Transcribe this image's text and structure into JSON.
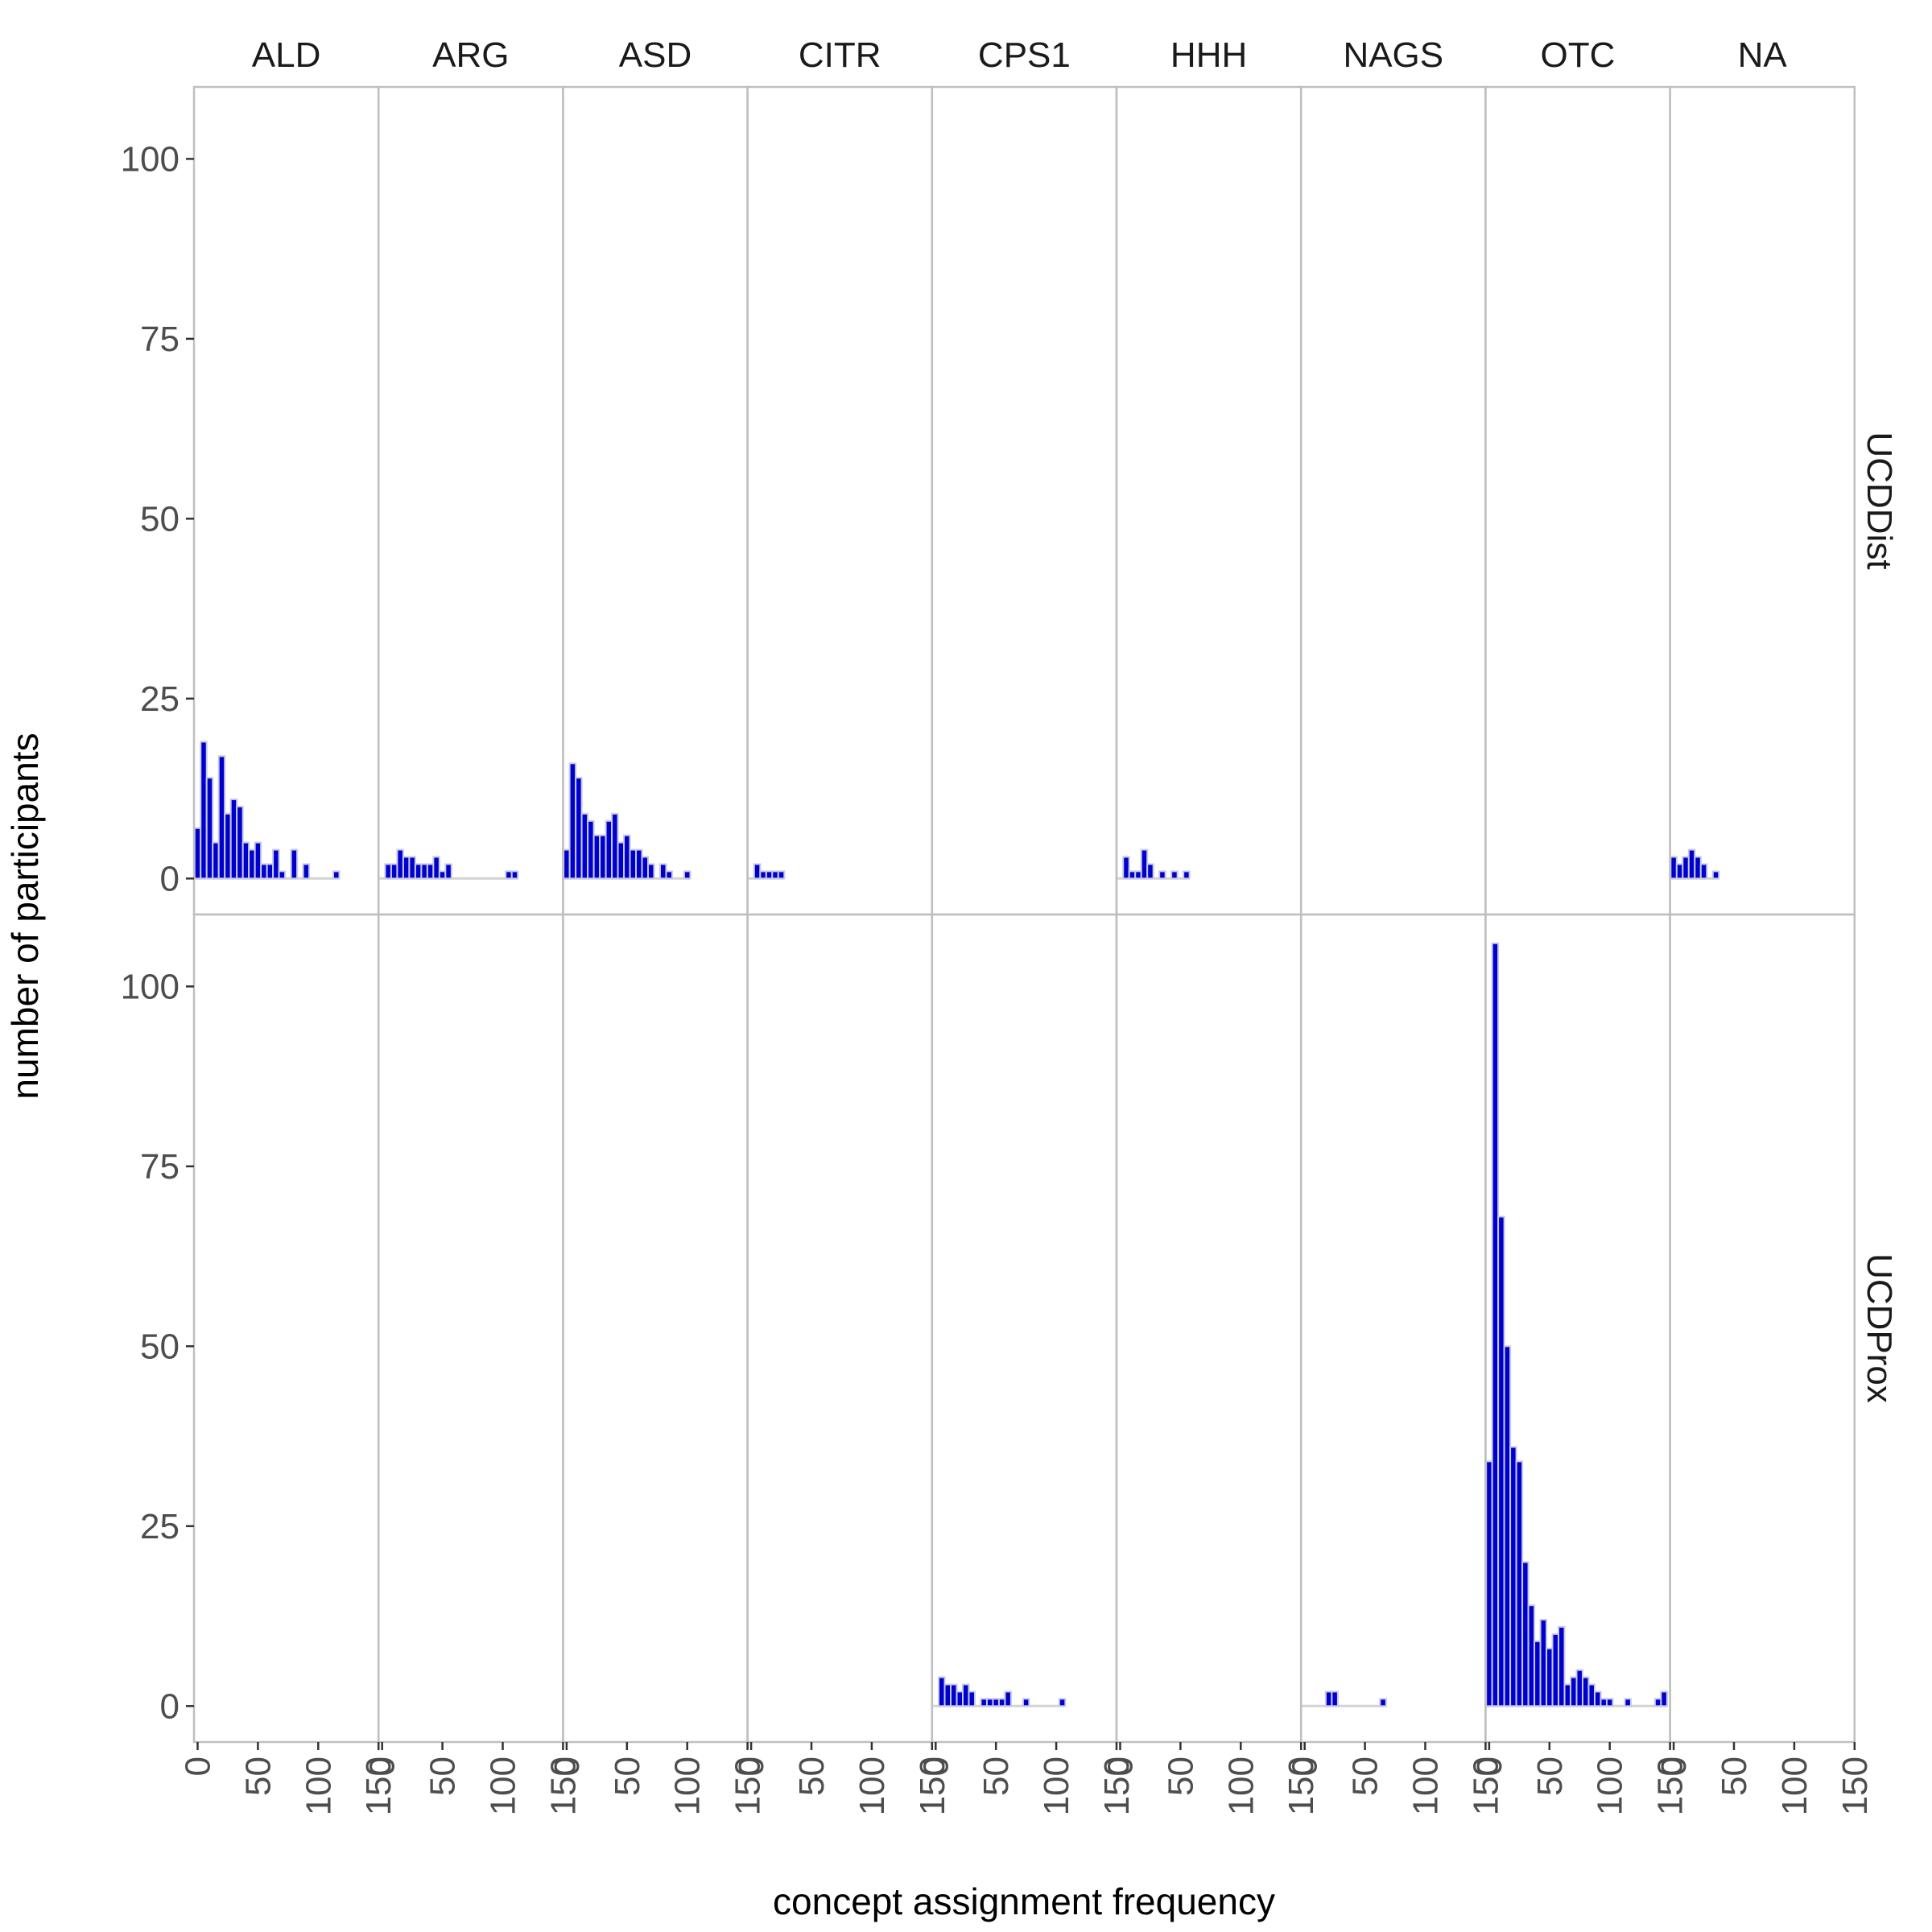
{
  "chart_data": {
    "type": "bar",
    "subtype": "faceted-histogram",
    "xlabel": "concept assignment frequency",
    "ylabel": "number of participants",
    "xlim": [
      -3,
      150
    ],
    "ylim": [
      -5,
      110
    ],
    "x_ticks": [
      0,
      50,
      100,
      150
    ],
    "y_ticks": [
      0,
      25,
      50,
      75,
      100
    ],
    "bin_width": 5,
    "grid": false,
    "legend": "none",
    "colors": {
      "bar_fill": "#0000cc",
      "bar_outline": "#c8c8e8",
      "baseline": "#d3d3d3",
      "panel_border": "#bfbfbf"
    },
    "columns": [
      "ALD",
      "ARG",
      "ASD",
      "CITR",
      "CPS1",
      "HHH",
      "NAGS",
      "OTC",
      "NA"
    ],
    "rows": [
      "UCDDist",
      "UCDProx"
    ],
    "panels": [
      {
        "row": "UCDDist",
        "col": "ALD",
        "x": [
          0,
          5,
          10,
          15,
          20,
          25,
          30,
          35,
          40,
          45,
          50,
          55,
          60,
          65,
          70,
          80,
          90,
          115
        ],
        "y": [
          7,
          19,
          14,
          5,
          17,
          9,
          11,
          10,
          5,
          4,
          5,
          2,
          2,
          4,
          1,
          4,
          2,
          1
        ]
      },
      {
        "row": "UCDDist",
        "col": "ARG",
        "x": [
          5,
          10,
          15,
          20,
          25,
          30,
          35,
          40,
          45,
          50,
          55,
          105,
          110
        ],
        "y": [
          2,
          2,
          4,
          3,
          3,
          2,
          2,
          2,
          3,
          1,
          2,
          1,
          1
        ]
      },
      {
        "row": "UCDDist",
        "col": "ASD",
        "x": [
          0,
          5,
          10,
          15,
          20,
          25,
          30,
          35,
          40,
          45,
          50,
          55,
          60,
          65,
          70,
          80,
          85,
          100
        ],
        "y": [
          4,
          16,
          14,
          9,
          8,
          6,
          6,
          8,
          9,
          5,
          6,
          4,
          4,
          3,
          2,
          2,
          1,
          1
        ]
      },
      {
        "row": "UCDDist",
        "col": "CITR",
        "x": [
          5,
          10,
          15,
          20,
          25
        ],
        "y": [
          2,
          1,
          1,
          1,
          1
        ]
      },
      {
        "row": "UCDDist",
        "col": "CPS1",
        "x": [],
        "y": []
      },
      {
        "row": "UCDDist",
        "col": "HHH",
        "x": [
          5,
          10,
          15,
          20,
          25,
          35,
          45,
          55
        ],
        "y": [
          3,
          1,
          1,
          4,
          2,
          1,
          1,
          1
        ]
      },
      {
        "row": "UCDDist",
        "col": "NAGS",
        "x": [],
        "y": []
      },
      {
        "row": "UCDDist",
        "col": "OTC",
        "x": [],
        "y": []
      },
      {
        "row": "UCDDist",
        "col": "NA",
        "x": [
          0,
          5,
          10,
          15,
          20,
          25,
          30,
          35
        ],
        "y": [
          3,
          2,
          3,
          4,
          3,
          2,
          0,
          1
        ]
      },
      {
        "row": "UCDProx",
        "col": "ALD",
        "x": [],
        "y": []
      },
      {
        "row": "UCDProx",
        "col": "ARG",
        "x": [],
        "y": []
      },
      {
        "row": "UCDProx",
        "col": "ASD",
        "x": [],
        "y": []
      },
      {
        "row": "UCDProx",
        "col": "CITR",
        "x": [],
        "y": []
      },
      {
        "row": "UCDProx",
        "col": "CPS1",
        "x": [
          5,
          10,
          15,
          20,
          25,
          30,
          40,
          45,
          50,
          55,
          60,
          75,
          105
        ],
        "y": [
          4,
          3,
          3,
          2,
          3,
          2,
          1,
          1,
          1,
          1,
          2,
          1,
          1
        ]
      },
      {
        "row": "UCDProx",
        "col": "HHH",
        "x": [],
        "y": []
      },
      {
        "row": "UCDProx",
        "col": "NAGS",
        "x": [
          20,
          25,
          65
        ],
        "y": [
          2,
          2,
          1
        ]
      },
      {
        "row": "UCDProx",
        "col": "OTC",
        "x": [
          0,
          5,
          10,
          15,
          20,
          25,
          30,
          35,
          40,
          45,
          50,
          55,
          60,
          65,
          70,
          75,
          80,
          85,
          90,
          95,
          100,
          115,
          140,
          145
        ],
        "y": [
          34,
          106,
          68,
          50,
          36,
          34,
          20,
          14,
          9,
          12,
          8,
          10,
          11,
          3,
          4,
          5,
          4,
          3,
          2,
          1,
          1,
          1,
          1,
          2
        ]
      },
      {
        "row": "UCDProx",
        "col": "NA",
        "x": [],
        "y": []
      }
    ]
  }
}
